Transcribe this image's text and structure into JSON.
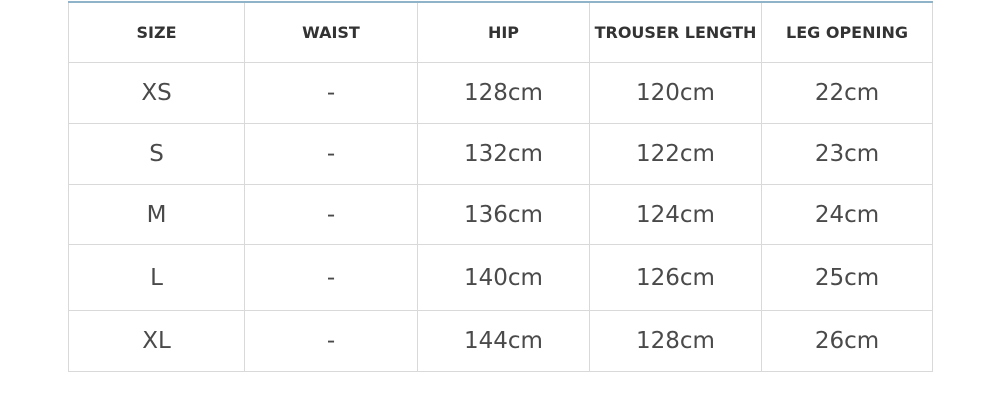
{
  "table": {
    "headers": [
      "SIZE",
      "WAIST",
      "HIP",
      "TROUSER LENGTH",
      "LEG OPENING"
    ],
    "rows": [
      [
        "XS",
        "-",
        "128cm",
        "120cm",
        "22cm"
      ],
      [
        "S",
        "-",
        "132cm",
        "122cm",
        "23cm"
      ],
      [
        "M",
        "-",
        "136cm",
        "124cm",
        "24cm"
      ],
      [
        "L",
        "-",
        "140cm",
        "126cm",
        "25cm"
      ],
      [
        "XL",
        "-",
        "144cm",
        "128cm",
        "26cm"
      ]
    ]
  }
}
